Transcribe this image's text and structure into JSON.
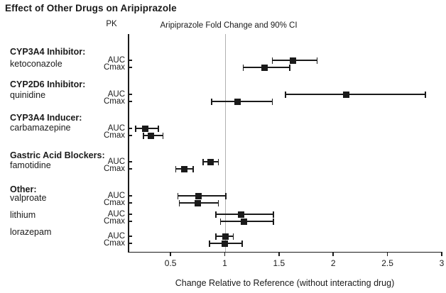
{
  "title": "Effect of Other Drugs on Aripiprazole",
  "chart_data": {
    "type": "forest",
    "title": "Effect of Other Drugs on Aripiprazole",
    "pk_column_header": "PK",
    "plot_header": "Aripiprazole Fold Change and 90% CI",
    "xlabel": "Change Relative to Reference (without interacting drug)",
    "x_tick_labels": [
      "0.5",
      "1",
      "1.5",
      "2",
      "2.5",
      "3"
    ],
    "x_tick_values": [
      0.5,
      1,
      1.5,
      2,
      2.5,
      3
    ],
    "xlim": [
      0.107,
      3
    ],
    "reference_line_x": 1,
    "ci_level": "90%",
    "legend_position": "none",
    "grid": false,
    "colors": {
      "marker": "#1a1a1a",
      "error_bar": "#1a1a1a",
      "reference_line": "#b0b0b0",
      "text": "#1a1a1a",
      "background": "#ffffff"
    },
    "groups": [
      {
        "header": "CYP3A4 Inhibitor:",
        "drugs": [
          {
            "name": "ketoconazole",
            "rows": [
              {
                "pk": "AUC",
                "value": 1.63,
                "ci_low": 1.44,
                "ci_high": 1.85
              },
              {
                "pk": "Cmax",
                "value": 1.37,
                "ci_low": 1.17,
                "ci_high": 1.6
              }
            ]
          }
        ]
      },
      {
        "header": "CYP2D6 Inhibitor:",
        "drugs": [
          {
            "name": "quinidine",
            "rows": [
              {
                "pk": "AUC",
                "value": 2.12,
                "ci_low": 1.56,
                "ci_high": 2.85
              },
              {
                "pk": "Cmax",
                "value": 1.12,
                "ci_low": 0.88,
                "ci_high": 1.44
              }
            ]
          }
        ]
      },
      {
        "header": "CYP3A4 Inducer:",
        "drugs": [
          {
            "name": "carbamazepine",
            "rows": [
              {
                "pk": "AUC",
                "value": 0.27,
                "ci_low": 0.18,
                "ci_high": 0.39
              },
              {
                "pk": "Cmax",
                "value": 0.32,
                "ci_low": 0.25,
                "ci_high": 0.43
              }
            ]
          }
        ]
      },
      {
        "header": "Gastric Acid Blockers:",
        "drugs": [
          {
            "name": "famotidine",
            "rows": [
              {
                "pk": "AUC",
                "value": 0.87,
                "ci_low": 0.8,
                "ci_high": 0.94
              },
              {
                "pk": "Cmax",
                "value": 0.63,
                "ci_low": 0.55,
                "ci_high": 0.71
              }
            ]
          }
        ]
      },
      {
        "header": "Other:",
        "drugs": [
          {
            "name": "valproate",
            "rows": [
              {
                "pk": "AUC",
                "value": 0.76,
                "ci_low": 0.57,
                "ci_high": 1.01
              },
              {
                "pk": "Cmax",
                "value": 0.75,
                "ci_low": 0.58,
                "ci_high": 0.94
              }
            ]
          },
          {
            "name": "lithium",
            "rows": [
              {
                "pk": "AUC",
                "value": 1.15,
                "ci_low": 0.92,
                "ci_high": 1.45
              },
              {
                "pk": "Cmax",
                "value": 1.18,
                "ci_low": 0.96,
                "ci_high": 1.45
              }
            ]
          },
          {
            "name": "lorazepam",
            "rows": [
              {
                "pk": "AUC",
                "value": 1.01,
                "ci_low": 0.92,
                "ci_high": 1.08
              },
              {
                "pk": "Cmax",
                "value": 1.0,
                "ci_low": 0.86,
                "ci_high": 1.16
              }
            ]
          }
        ]
      }
    ]
  }
}
